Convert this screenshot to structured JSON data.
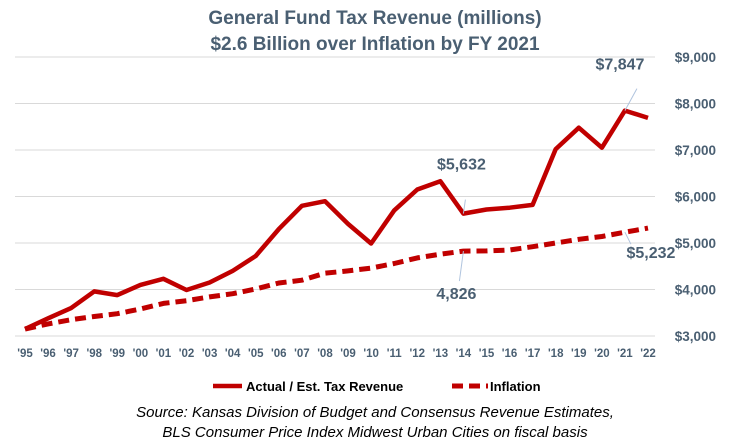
{
  "chart_data": {
    "type": "line",
    "title": "General Fund Tax Revenue (millions)",
    "subtitle": "$2.6 Billion over Inflation by FY 2021",
    "categories": [
      "'95",
      "'96",
      "'97",
      "'98",
      "'99",
      "'00",
      "'01",
      "'02",
      "'03",
      "'04",
      "'05",
      "'06",
      "'07",
      "'08",
      "'09",
      "'10",
      "'11",
      "'12",
      "'13",
      "'14",
      "'15",
      "'16",
      "'17",
      "'18",
      "'19",
      "'20",
      "'21",
      "'22"
    ],
    "series": [
      {
        "name": "Actual / Est. Tax Revenue",
        "color": "#c00000",
        "style": "solid",
        "values": [
          3150,
          3380,
          3600,
          3960,
          3880,
          4100,
          4230,
          3990,
          4150,
          4400,
          4720,
          5300,
          5800,
          5900,
          5410,
          4990,
          5700,
          6150,
          6330,
          5632,
          5720,
          5760,
          5820,
          7020,
          7480,
          7050,
          7847,
          7690
        ]
      },
      {
        "name": "Inflation",
        "color": "#c00000",
        "style": "dashed",
        "values": [
          3150,
          3260,
          3350,
          3420,
          3480,
          3580,
          3700,
          3760,
          3840,
          3910,
          4010,
          4140,
          4200,
          4350,
          4400,
          4460,
          4560,
          4680,
          4760,
          4826,
          4830,
          4850,
          4920,
          5000,
          5080,
          5140,
          5232,
          5320
        ]
      }
    ],
    "ylim": [
      3000,
      9000
    ],
    "yticks": [
      3000,
      4000,
      5000,
      6000,
      7000,
      8000,
      9000
    ],
    "ytick_labels": [
      "$3,000",
      "$4,000",
      "$5,000",
      "$6,000",
      "$7,000",
      "$8,000",
      "$9,000"
    ],
    "grid": true,
    "legend_placement": "bottom",
    "annotations": [
      {
        "text": "$7,847",
        "series": 0,
        "index": 26
      },
      {
        "text": "$5,632",
        "series": 0,
        "index": 19
      },
      {
        "text": "4,826",
        "series": 1,
        "index": 19
      },
      {
        "text": "$5,232",
        "series": 1,
        "index": 26
      }
    ]
  },
  "source": {
    "line1": "Source: Kansas Division of Budget and Consensus Revenue Estimates,",
    "line2": "BLS Consumer Price Index Midwest Urban Cities on fiscal basis"
  }
}
